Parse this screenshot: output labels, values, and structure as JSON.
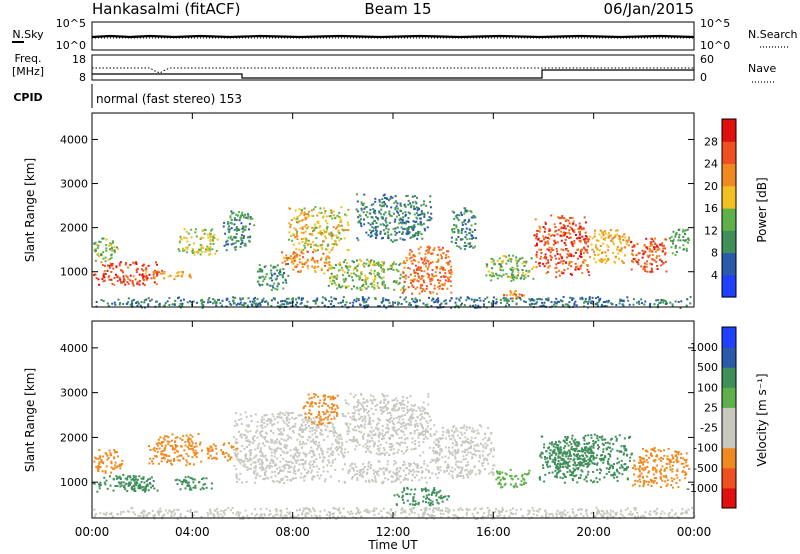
{
  "header": {
    "station": "Hankasalmi (fitACF)",
    "beam": "Beam 15",
    "date": "06/Jan/2015"
  },
  "panels": {
    "nsky_label": "N.Sky",
    "nsearch_label": "N.Search",
    "noise_left_ticks": [
      "10^5",
      "10^0"
    ],
    "noise_right_ticks": [
      "10^5",
      "10^0"
    ],
    "freq_label_1": "Freq.",
    "freq_label_2": "[MHz]",
    "freq_ticks": [
      "18",
      "8"
    ],
    "nave_label": "Nave",
    "nave_ticks": [
      "60",
      "0"
    ],
    "cpid_label": "CPID",
    "cpid_text": "normal (fast stereo) 153"
  },
  "colors": {
    "power_scale": [
      "#2040ff",
      "#2a5aa8",
      "#3f8f5a",
      "#5fb04a",
      "#f2c020",
      "#f08a20",
      "#f05020",
      "#e01010"
    ],
    "velocity_scale": [
      "#e01010",
      "#f05020",
      "#f08a20",
      "#c8c8c0",
      "#c8c8c0",
      "#5fb04a",
      "#3f8f5a",
      "#2a5aa8",
      "#2040ff"
    ]
  },
  "chart_data": [
    {
      "type": "heatmap",
      "title": "Beam 15",
      "xlabel": "Time UT",
      "ylabel": "Slant Range [km]",
      "x_ticks": [
        "00:00",
        "04:00",
        "08:00",
        "12:00",
        "16:00",
        "20:00",
        "00:00"
      ],
      "y_ticks": [
        "1000",
        "2000",
        "3000",
        "4000"
      ],
      "xlim_hours": [
        0,
        24
      ],
      "ylim_km": [
        200,
        4600
      ],
      "colorbar_label": "Power [dB]",
      "colorbar_ticks": [
        "4",
        "8",
        "12",
        "16",
        "20",
        "24",
        "28"
      ],
      "zlim": [
        0,
        32
      ],
      "regions": [
        {
          "t0": 0.0,
          "t1": 2.6,
          "r0": 700,
          "r1": 1250,
          "value": 27
        },
        {
          "t0": 0.0,
          "t1": 1.0,
          "r0": 1250,
          "r1": 1800,
          "value": 14
        },
        {
          "t0": 2.0,
          "t1": 4.0,
          "r0": 850,
          "r1": 1050,
          "value": 22
        },
        {
          "t0": 3.4,
          "t1": 5.0,
          "r0": 1400,
          "r1": 2000,
          "value": 16
        },
        {
          "t0": 5.2,
          "t1": 6.5,
          "r0": 1500,
          "r1": 2400,
          "value": 10
        },
        {
          "t0": 6.5,
          "t1": 7.8,
          "r0": 600,
          "r1": 1200,
          "value": 10
        },
        {
          "t0": 7.8,
          "t1": 10.2,
          "r0": 1500,
          "r1": 2500,
          "value": 18
        },
        {
          "t0": 7.5,
          "t1": 9.5,
          "r0": 1000,
          "r1": 1500,
          "value": 22
        },
        {
          "t0": 9.2,
          "t1": 12.5,
          "r0": 600,
          "r1": 1300,
          "value": 14
        },
        {
          "t0": 10.5,
          "t1": 13.5,
          "r0": 1700,
          "r1": 2800,
          "value": 9
        },
        {
          "t0": 12.3,
          "t1": 14.3,
          "r0": 500,
          "r1": 1600,
          "value": 24
        },
        {
          "t0": 14.3,
          "t1": 15.3,
          "r0": 1500,
          "r1": 2500,
          "value": 9
        },
        {
          "t0": 15.6,
          "t1": 17.6,
          "r0": 800,
          "r1": 1400,
          "value": 14
        },
        {
          "t0": 16.3,
          "t1": 17.3,
          "r0": 400,
          "r1": 600,
          "value": 22
        },
        {
          "t0": 17.6,
          "t1": 19.8,
          "r0": 900,
          "r1": 2300,
          "value": 26
        },
        {
          "t0": 19.8,
          "t1": 21.4,
          "r0": 1200,
          "r1": 2000,
          "value": 20
        },
        {
          "t0": 21.4,
          "t1": 22.9,
          "r0": 1000,
          "r1": 1800,
          "value": 26
        },
        {
          "t0": 22.9,
          "t1": 23.8,
          "r0": 1400,
          "r1": 2000,
          "value": 12
        },
        {
          "t0": 0.0,
          "t1": 24.0,
          "r0": 200,
          "r1": 450,
          "value": 8
        }
      ]
    },
    {
      "type": "heatmap",
      "title": "Beam 15",
      "xlabel": "Time UT",
      "ylabel": "Slant Range [km]",
      "x_ticks": [
        "00:00",
        "04:00",
        "08:00",
        "12:00",
        "16:00",
        "20:00",
        "00:00"
      ],
      "y_ticks": [
        "1000",
        "2000",
        "3000",
        "4000"
      ],
      "xlim_hours": [
        0,
        24
      ],
      "ylim_km": [
        200,
        4600
      ],
      "colorbar_label": "Velocity [m s⁻¹]",
      "colorbar_ticks": [
        "1000",
        "500",
        "100",
        "25",
        "-25",
        "-100",
        "-500",
        "-1000"
      ],
      "regions": [
        {
          "t0": 0.0,
          "t1": 1.2,
          "r0": 1200,
          "r1": 1750,
          "value": -300
        },
        {
          "t0": 0.0,
          "t1": 2.5,
          "r0": 800,
          "r1": 1200,
          "value": 150
        },
        {
          "t0": 1.2,
          "t1": 2.6,
          "r0": 800,
          "r1": 1050,
          "value": 120
        },
        {
          "t0": 2.2,
          "t1": 4.4,
          "r0": 1400,
          "r1": 2100,
          "value": -300
        },
        {
          "t0": 3.2,
          "t1": 4.8,
          "r0": 850,
          "r1": 1150,
          "value": 200
        },
        {
          "t0": 4.5,
          "t1": 5.8,
          "r0": 1500,
          "r1": 1900,
          "value": -150
        },
        {
          "t0": 5.6,
          "t1": 10.0,
          "r0": 1000,
          "r1": 2600,
          "value": 0
        },
        {
          "t0": 8.4,
          "t1": 9.8,
          "r0": 2300,
          "r1": 3000,
          "value": -400
        },
        {
          "t0": 10.0,
          "t1": 13.5,
          "r0": 1600,
          "r1": 3000,
          "value": 10
        },
        {
          "t0": 10.0,
          "t1": 13.5,
          "r0": 1000,
          "r1": 1500,
          "value": 0
        },
        {
          "t0": 12.0,
          "t1": 14.2,
          "r0": 500,
          "r1": 900,
          "value": 130
        },
        {
          "t0": 13.5,
          "t1": 16.0,
          "r0": 1100,
          "r1": 2300,
          "value": 0
        },
        {
          "t0": 16.0,
          "t1": 17.5,
          "r0": 900,
          "r1": 1300,
          "value": 60
        },
        {
          "t0": 17.8,
          "t1": 21.5,
          "r0": 1000,
          "r1": 2100,
          "value": 150
        },
        {
          "t0": 18.0,
          "t1": 20.0,
          "r0": 1300,
          "r1": 1800,
          "value": 400
        },
        {
          "t0": 21.5,
          "t1": 23.8,
          "r0": 900,
          "r1": 1800,
          "value": -300
        },
        {
          "t0": 0.0,
          "t1": 24.0,
          "r0": 200,
          "r1": 450,
          "value": 5
        }
      ]
    }
  ]
}
